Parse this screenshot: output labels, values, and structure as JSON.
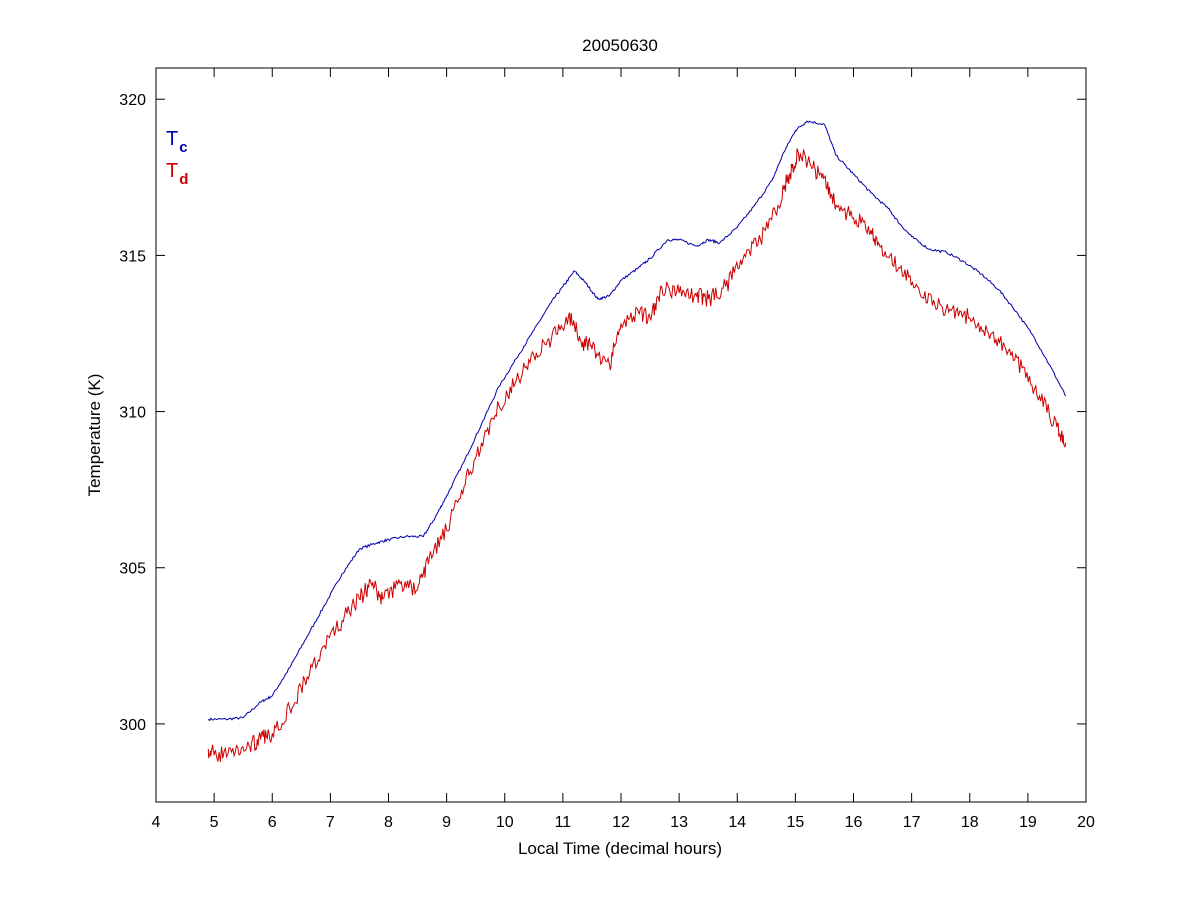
{
  "chart_data": {
    "type": "line",
    "title": "20050630",
    "xlabel": "Local Time (decimal hours)",
    "ylabel": "Temperature (K)",
    "xlim": [
      4,
      20
    ],
    "ylim": [
      297.5,
      321
    ],
    "xticks": [
      4,
      5,
      6,
      7,
      8,
      9,
      10,
      11,
      12,
      13,
      14,
      15,
      16,
      17,
      18,
      19,
      20
    ],
    "yticks": [
      300,
      305,
      310,
      315,
      320
    ],
    "grid": false,
    "legend_position": "top-left",
    "series": [
      {
        "name": "Tc",
        "label_main": "T",
        "label_sub": "c",
        "color": "#0000aa",
        "points": [
          [
            4.9,
            300.15
          ],
          [
            5.2,
            300.15
          ],
          [
            5.5,
            300.2
          ],
          [
            5.8,
            300.7
          ],
          [
            6.0,
            300.9
          ],
          [
            6.3,
            301.8
          ],
          [
            6.6,
            302.8
          ],
          [
            6.9,
            303.8
          ],
          [
            7.2,
            304.8
          ],
          [
            7.5,
            305.6
          ],
          [
            7.8,
            305.8
          ],
          [
            8.0,
            305.9
          ],
          [
            8.3,
            306.0
          ],
          [
            8.6,
            306.0
          ],
          [
            8.8,
            306.6
          ],
          [
            9.0,
            307.3
          ],
          [
            9.3,
            308.4
          ],
          [
            9.6,
            309.6
          ],
          [
            9.9,
            310.8
          ],
          [
            10.2,
            311.7
          ],
          [
            10.5,
            312.6
          ],
          [
            10.8,
            313.5
          ],
          [
            11.0,
            314.0
          ],
          [
            11.2,
            314.5
          ],
          [
            11.4,
            314.1
          ],
          [
            11.6,
            313.6
          ],
          [
            11.8,
            313.7
          ],
          [
            12.0,
            314.2
          ],
          [
            12.3,
            314.6
          ],
          [
            12.5,
            314.9
          ],
          [
            12.8,
            315.5
          ],
          [
            13.0,
            315.5
          ],
          [
            13.3,
            315.3
          ],
          [
            13.5,
            315.5
          ],
          [
            13.7,
            315.4
          ],
          [
            14.0,
            315.9
          ],
          [
            14.3,
            316.6
          ],
          [
            14.6,
            317.4
          ],
          [
            14.8,
            318.3
          ],
          [
            15.0,
            319.0
          ],
          [
            15.2,
            319.3
          ],
          [
            15.5,
            319.2
          ],
          [
            15.7,
            318.2
          ],
          [
            16.0,
            317.6
          ],
          [
            16.3,
            317.0
          ],
          [
            16.6,
            316.5
          ],
          [
            16.8,
            316.0
          ],
          [
            17.0,
            315.6
          ],
          [
            17.3,
            315.2
          ],
          [
            17.6,
            315.1
          ],
          [
            17.9,
            314.8
          ],
          [
            18.2,
            314.4
          ],
          [
            18.5,
            313.9
          ],
          [
            18.8,
            313.2
          ],
          [
            19.1,
            312.4
          ],
          [
            19.4,
            311.4
          ],
          [
            19.65,
            310.5
          ]
        ]
      },
      {
        "name": "Td",
        "label_main": "T",
        "label_sub": "d",
        "color": "#cc0000",
        "points": [
          [
            4.9,
            299.2
          ],
          [
            5.0,
            299.0
          ],
          [
            5.3,
            299.1
          ],
          [
            5.6,
            299.3
          ],
          [
            5.8,
            299.5
          ],
          [
            6.0,
            299.7
          ],
          [
            6.3,
            300.5
          ],
          [
            6.6,
            301.5
          ],
          [
            6.9,
            302.5
          ],
          [
            7.2,
            303.3
          ],
          [
            7.5,
            304.0
          ],
          [
            7.7,
            304.5
          ],
          [
            7.9,
            304.0
          ],
          [
            8.2,
            304.5
          ],
          [
            8.5,
            304.3
          ],
          [
            8.7,
            305.3
          ],
          [
            9.0,
            306.2
          ],
          [
            9.3,
            307.6
          ],
          [
            9.6,
            309.0
          ],
          [
            9.9,
            310.2
          ],
          [
            10.2,
            311.0
          ],
          [
            10.5,
            311.8
          ],
          [
            10.8,
            312.3
          ],
          [
            11.1,
            313.1
          ],
          [
            11.3,
            312.3
          ],
          [
            11.5,
            312.0
          ],
          [
            11.8,
            311.5
          ],
          [
            12.0,
            312.8
          ],
          [
            12.3,
            313.2
          ],
          [
            12.5,
            313.0
          ],
          [
            12.7,
            314.0
          ],
          [
            13.0,
            313.8
          ],
          [
            13.3,
            313.7
          ],
          [
            13.5,
            313.6
          ],
          [
            13.8,
            314.0
          ],
          [
            14.1,
            314.9
          ],
          [
            14.4,
            315.5
          ],
          [
            14.7,
            316.6
          ],
          [
            14.9,
            317.6
          ],
          [
            15.05,
            318.3
          ],
          [
            15.3,
            317.8
          ],
          [
            15.5,
            317.5
          ],
          [
            15.7,
            316.6
          ],
          [
            16.0,
            316.2
          ],
          [
            16.3,
            315.8
          ],
          [
            16.5,
            315.0
          ],
          [
            16.8,
            314.6
          ],
          [
            17.1,
            314.0
          ],
          [
            17.4,
            313.4
          ],
          [
            17.7,
            313.3
          ],
          [
            18.0,
            313.0
          ],
          [
            18.3,
            312.6
          ],
          [
            18.6,
            312.1
          ],
          [
            18.9,
            311.4
          ],
          [
            19.2,
            310.5
          ],
          [
            19.5,
            309.5
          ],
          [
            19.65,
            309.0
          ]
        ]
      }
    ]
  }
}
